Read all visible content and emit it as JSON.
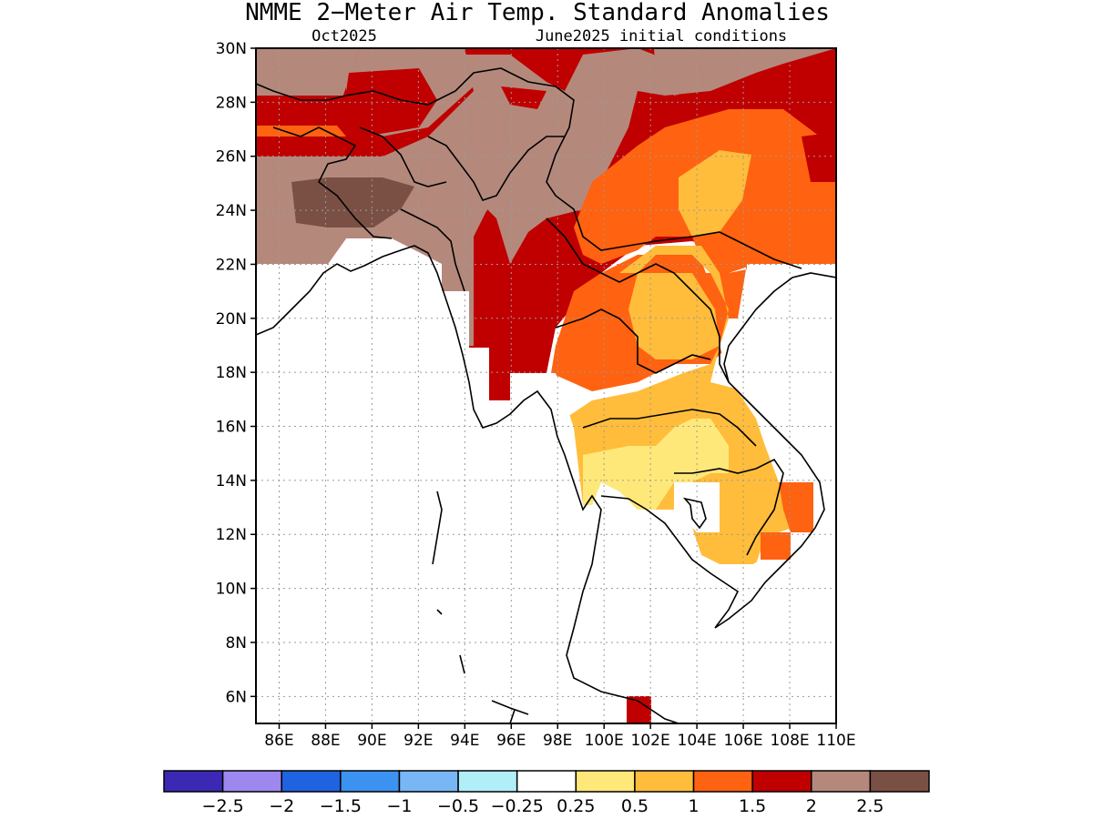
{
  "title": "NMME 2−Meter Air Temp. Standard Anomalies",
  "subtitle_left": "Oct2025",
  "subtitle_right": "June2025 initial conditions",
  "map": {
    "lon_range": [
      85,
      110
    ],
    "lat_range": [
      5,
      30
    ],
    "lat_ticks": [
      "30N",
      "28N",
      "26N",
      "24N",
      "22N",
      "20N",
      "18N",
      "16N",
      "14N",
      "12N",
      "10N",
      "8N",
      "6N"
    ],
    "lon_ticks": [
      "86E",
      "88E",
      "90E",
      "92E",
      "94E",
      "96E",
      "98E",
      "100E",
      "102E",
      "104E",
      "106E",
      "108E",
      "110E"
    ]
  },
  "colorbar": {
    "colors": [
      "#3b28b4",
      "#9d88f0",
      "#1f63e0",
      "#3c92f0",
      "#78b6f6",
      "#b0eef8",
      "#ffffff",
      "#ffe87a",
      "#ffbd3b",
      "#ff6210",
      "#c00000",
      "#b4897c",
      "#7a5045"
    ],
    "labels": [
      "−2.5",
      "−2",
      "−1.5",
      "−1",
      "−0.5",
      "−0.25",
      "0.25",
      "0.5",
      "1",
      "1.5",
      "2",
      "2.5"
    ]
  }
}
